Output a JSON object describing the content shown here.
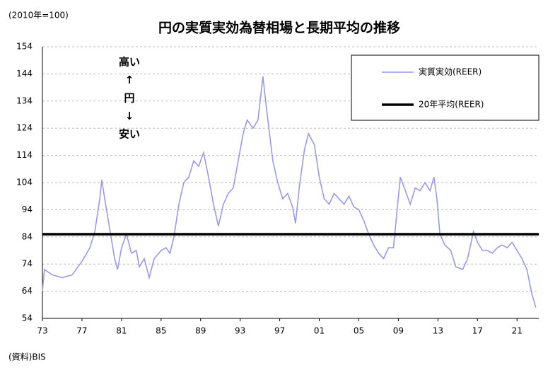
{
  "chart_data": {
    "type": "line",
    "title": "円の実質実効為替相場と長期平均の推移",
    "unit_label": "(2010年=100)",
    "source": "(資料)BIS",
    "annotations": [
      "高い",
      "↑",
      "円",
      "↓",
      "安い"
    ],
    "xlim": [
      1973,
      2023.2
    ],
    "xticks": [
      {
        "value": 1973,
        "label": "73"
      },
      {
        "value": 1977,
        "label": "77"
      },
      {
        "value": 1981,
        "label": "81"
      },
      {
        "value": 1985,
        "label": "85"
      },
      {
        "value": 1989,
        "label": "89"
      },
      {
        "value": 1993,
        "label": "93"
      },
      {
        "value": 1997,
        "label": "97"
      },
      {
        "value": 2001,
        "label": "01"
      },
      {
        "value": 2005,
        "label": "05"
      },
      {
        "value": 2009,
        "label": "09"
      },
      {
        "value": 2013,
        "label": "13"
      },
      {
        "value": 2017,
        "label": "17"
      },
      {
        "value": 2021,
        "label": "21"
      }
    ],
    "ylim": [
      54,
      154
    ],
    "yticks": [
      54,
      64,
      74,
      84,
      94,
      104,
      114,
      124,
      134,
      144,
      154
    ],
    "grid": true,
    "legend": "upper right",
    "x": [
      1973.0,
      1973.2,
      1974,
      1975,
      1976,
      1977,
      1977.8,
      1978.3,
      1978.8,
      1979.0,
      1979.3,
      1979.8,
      1980.3,
      1980.6,
      1981.0,
      1981.5,
      1982.0,
      1982.5,
      1982.8,
      1983.3,
      1983.8,
      1984.3,
      1985.0,
      1985.5,
      1985.9,
      1986.3,
      1986.8,
      1987.3,
      1987.8,
      1988.3,
      1988.8,
      1989.3,
      1989.8,
      1990.3,
      1990.8,
      1991.3,
      1991.8,
      1992.3,
      1992.8,
      1993.3,
      1993.7,
      1994.3,
      1994.8,
      1995.3,
      1995.7,
      1996.3,
      1996.8,
      1997.3,
      1997.8,
      1998.3,
      1998.6,
      1999.0,
      1999.5,
      1999.9,
      2000.5,
      2001.0,
      2001.5,
      2002.0,
      2002.5,
      2003.0,
      2003.5,
      2004.0,
      2004.5,
      2005.0,
      2005.5,
      2006.0,
      2006.5,
      2007.0,
      2007.5,
      2008.0,
      2008.5,
      2008.9,
      2009.2,
      2009.7,
      2010.2,
      2010.7,
      2011.2,
      2011.7,
      2012.2,
      2012.6,
      2012.9,
      2013.2,
      2013.7,
      2014.3,
      2014.8,
      2015.5,
      2016.0,
      2016.6,
      2017.0,
      2017.5,
      2018.0,
      2018.5,
      2019.0,
      2019.5,
      2020.0,
      2020.5,
      2021.0,
      2021.5,
      2022.0,
      2022.5,
      2022.9
    ],
    "series": [
      {
        "name": "実質実効(REER)",
        "color": "#9a9ae0",
        "values": [
          64,
          72,
          70,
          69,
          70,
          75,
          80,
          86,
          98,
          105,
          98,
          87,
          76,
          72,
          80,
          85,
          78,
          79,
          73,
          76,
          69,
          76,
          79,
          80,
          78,
          84,
          96,
          104,
          106,
          112,
          110,
          115,
          106,
          96,
          88,
          96,
          100,
          102,
          112,
          122,
          127,
          124,
          127,
          143,
          130,
          112,
          104,
          98,
          100,
          95,
          89,
          103,
          116,
          122,
          118,
          106,
          98,
          96,
          100,
          98,
          96,
          99,
          95,
          94,
          90,
          85,
          81,
          78,
          76,
          80,
          80,
          95,
          106,
          101,
          96,
          102,
          101,
          104,
          101,
          106,
          98,
          85,
          81,
          79,
          73,
          72,
          76,
          86,
          82,
          79,
          79,
          78,
          80,
          81,
          80,
          82,
          79,
          76,
          72,
          63,
          58
        ]
      }
    ],
    "hline": {
      "name": "20年平均(REER)",
      "value": 85,
      "color": "#000000"
    }
  }
}
